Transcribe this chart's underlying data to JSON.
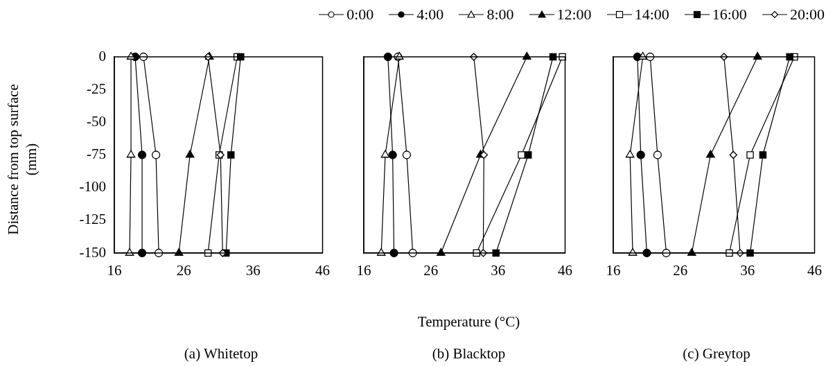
{
  "chart_data": [
    {
      "type": "line",
      "title": "(a) Whitetop",
      "ylabel": "Distance from  top surface (mm)",
      "legend": "top",
      "xlim": [
        16,
        46
      ],
      "xticks": [
        16,
        26,
        36,
        46
      ],
      "ylim": [
        -150,
        0
      ],
      "yticks": [
        0,
        -25,
        -50,
        -75,
        -100,
        -125,
        -150
      ],
      "grid": false,
      "series": [
        {
          "name": "0:00",
          "marker": "circle",
          "color": "#ffffff",
          "x": [
            20.2,
            22.0,
            22.4
          ],
          "values": [
            0,
            -75,
            -150
          ]
        },
        {
          "name": "4:00",
          "marker": "circle",
          "color": "#000000",
          "x": [
            19.0,
            20.0,
            20.0
          ],
          "values": [
            0,
            -75,
            -150
          ]
        },
        {
          "name": "8:00",
          "marker": "triangle",
          "color": "#ffffff",
          "x": [
            18.4,
            18.4,
            18.2
          ],
          "values": [
            0,
            -75,
            -150
          ]
        },
        {
          "name": "12:00",
          "marker": "triangle",
          "color": "#000000",
          "x": [
            29.7,
            26.9,
            25.3
          ],
          "values": [
            0,
            -75,
            -150
          ]
        },
        {
          "name": "14:00",
          "marker": "square",
          "color": "#ffffff",
          "x": [
            33.7,
            31.1,
            29.5
          ],
          "values": [
            0,
            -75,
            -150
          ]
        },
        {
          "name": "16:00",
          "marker": "square",
          "color": "#000000",
          "x": [
            34.2,
            32.8,
            32.1
          ],
          "values": [
            0,
            -75,
            -150
          ]
        },
        {
          "name": "20:00",
          "marker": "diamond",
          "color": "#ffffff",
          "x": [
            29.5,
            31.3,
            31.6
          ],
          "values": [
            0,
            -75,
            -150
          ]
        }
      ]
    },
    {
      "type": "line",
      "title": "(b) Blacktop",
      "xlabel": "Temperature (°C)",
      "tick_labels": "x",
      "xlim": [
        16,
        46
      ],
      "xticks": [
        16,
        26,
        36,
        46
      ],
      "ylim": [
        -150,
        0
      ],
      "yticks": [
        0,
        -25,
        -50,
        -75,
        -100,
        -125,
        -150
      ],
      "grid": false,
      "series": [
        {
          "marker": "circle",
          "color": "#ffffff",
          "x": [
            21.1,
            22.4,
            23.3
          ],
          "values": [
            0,
            -75,
            -150
          ]
        },
        {
          "marker": "circle",
          "color": "#000000",
          "x": [
            19.6,
            20.3,
            20.5
          ],
          "values": [
            0,
            -75,
            -150
          ]
        },
        {
          "marker": "triangle",
          "color": "#ffffff",
          "x": [
            21.3,
            19.2,
            18.6
          ],
          "values": [
            0,
            -75,
            -150
          ]
        },
        {
          "marker": "triangle",
          "color": "#000000",
          "x": [
            40.3,
            33.4,
            27.5
          ],
          "values": [
            0,
            -75,
            -150
          ]
        },
        {
          "marker": "square",
          "color": "#ffffff",
          "x": [
            45.6,
            39.5,
            32.8
          ],
          "values": [
            0,
            -75,
            -150
          ]
        },
        {
          "marker": "square",
          "color": "#000000",
          "x": [
            44.2,
            40.5,
            35.7
          ],
          "values": [
            0,
            -75,
            -150
          ]
        },
        {
          "marker": "diamond",
          "color": "#ffffff",
          "x": [
            32.4,
            33.9,
            33.8
          ],
          "values": [
            0,
            -75,
            -150
          ]
        }
      ]
    },
    {
      "type": "line",
      "title": "(c) Greytop",
      "tick_labels": "x",
      "xlim": [
        16,
        46
      ],
      "xticks": [
        16,
        26,
        36,
        46
      ],
      "ylim": [
        -150,
        0
      ],
      "yticks": [
        0,
        -25,
        -50,
        -75,
        -100,
        -125,
        -150
      ],
      "grid": false,
      "series": [
        {
          "marker": "circle",
          "color": "#ffffff",
          "x": [
            21.5,
            22.6,
            23.9
          ],
          "values": [
            0,
            -75,
            -150
          ]
        },
        {
          "marker": "circle",
          "color": "#000000",
          "x": [
            19.6,
            20.1,
            21.0
          ],
          "values": [
            0,
            -75,
            -150
          ]
        },
        {
          "marker": "triangle",
          "color": "#ffffff",
          "x": [
            20.4,
            18.5,
            18.9
          ],
          "values": [
            0,
            -75,
            -150
          ]
        },
        {
          "marker": "triangle",
          "color": "#000000",
          "x": [
            37.5,
            30.5,
            27.7
          ],
          "values": [
            0,
            -75,
            -150
          ]
        },
        {
          "marker": "square",
          "color": "#ffffff",
          "x": [
            43.0,
            36.4,
            33.3
          ],
          "values": [
            0,
            -75,
            -150
          ]
        },
        {
          "marker": "square",
          "color": "#000000",
          "x": [
            42.3,
            38.3,
            36.4
          ],
          "values": [
            0,
            -75,
            -150
          ]
        },
        {
          "marker": "diamond",
          "color": "#ffffff",
          "x": [
            32.5,
            33.9,
            34.9
          ],
          "values": [
            0,
            -75,
            -150
          ]
        }
      ]
    }
  ]
}
